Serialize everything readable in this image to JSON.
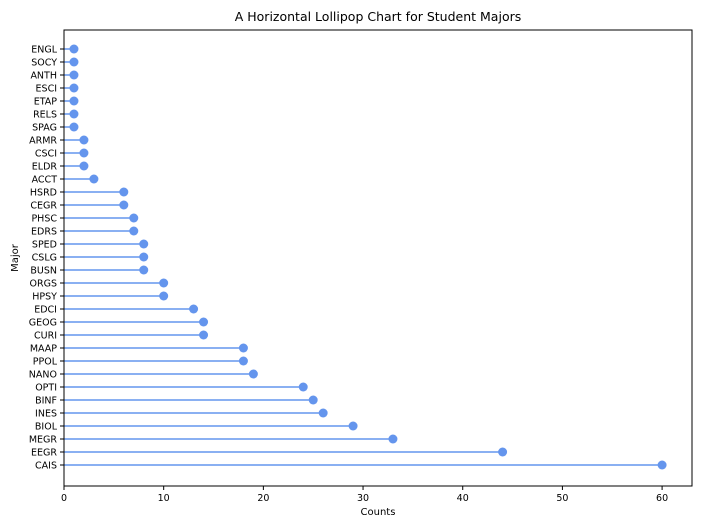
{
  "chart_data": {
    "type": "lollipop",
    "orientation": "horizontal",
    "title": "A Horizontal Lollipop Chart for Student Majors",
    "xlabel": "Counts",
    "ylabel": "Major",
    "xlim": [
      0,
      63
    ],
    "xticks": [
      0,
      10,
      20,
      30,
      40,
      50,
      60
    ],
    "grid": false,
    "color": "#6495ED",
    "categories": [
      "CAIS",
      "EEGR",
      "MEGR",
      "BIOL",
      "INES",
      "BINF",
      "OPTI",
      "NANO",
      "PPOL",
      "MAAP",
      "CURI",
      "GEOG",
      "EDCI",
      "HPSY",
      "ORGS",
      "BUSN",
      "CSLG",
      "SPED",
      "EDRS",
      "PHSC",
      "CEGR",
      "HSRD",
      "ACCT",
      "ELDR",
      "CSCI",
      "ARMR",
      "SPAG",
      "RELS",
      "ETAP",
      "ESCI",
      "ANTH",
      "SOCY",
      "ENGL"
    ],
    "values": [
      60,
      44,
      33,
      29,
      26,
      25,
      24,
      19,
      18,
      18,
      14,
      14,
      13,
      10,
      10,
      8,
      8,
      8,
      7,
      7,
      6,
      6,
      3,
      2,
      2,
      2,
      1,
      1,
      1,
      1,
      1,
      1,
      1
    ]
  }
}
